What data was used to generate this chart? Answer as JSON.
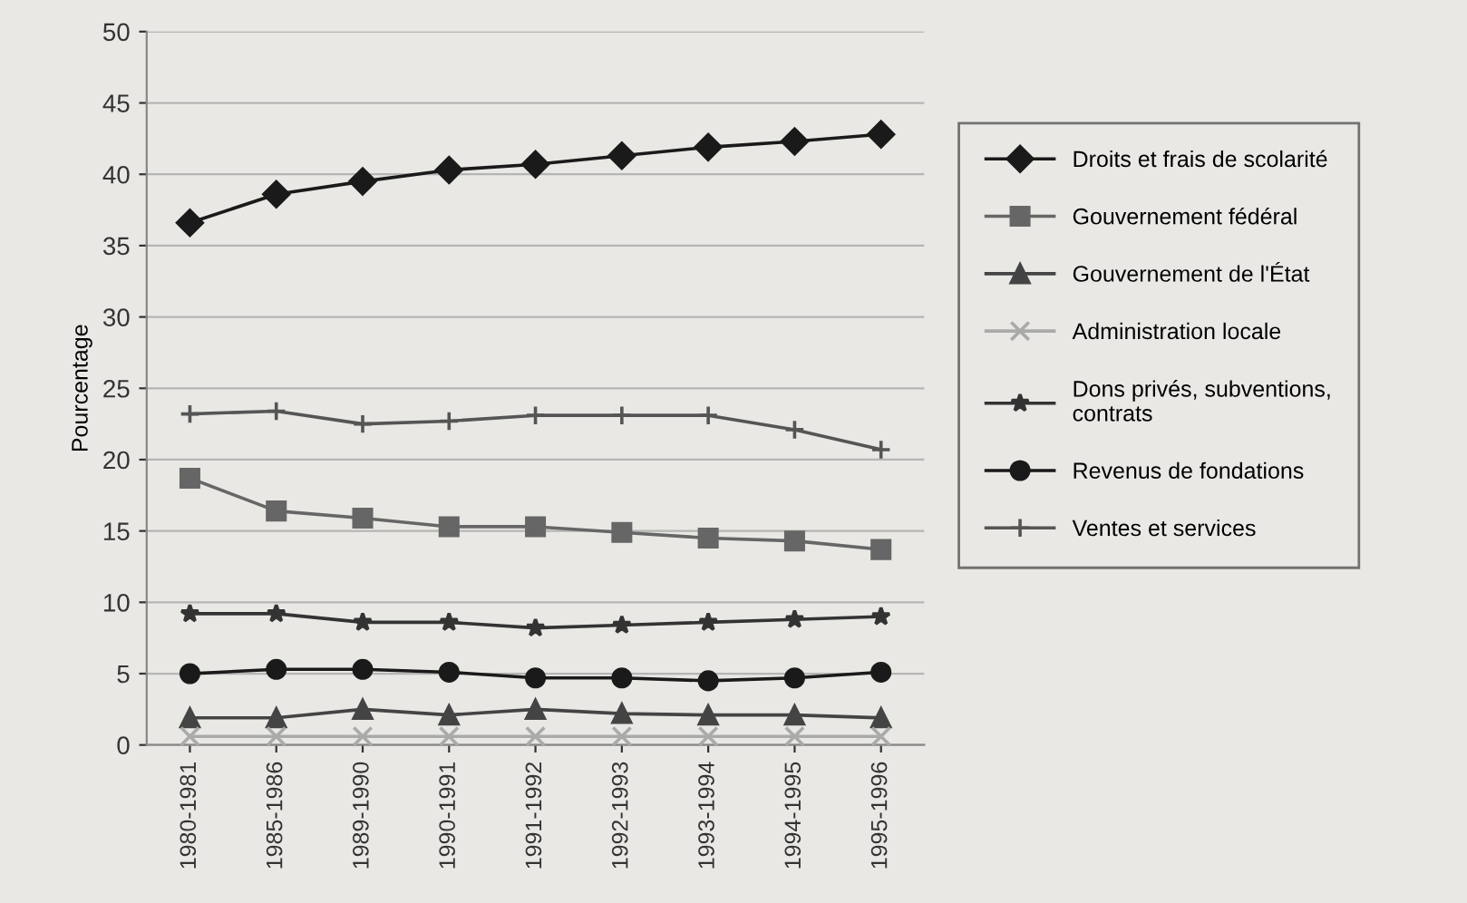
{
  "chart_data": {
    "type": "line",
    "ylabel": "Pourcentage",
    "categories": [
      "1980-1981",
      "1985-1986",
      "1989-1990",
      "1990-1991",
      "1991-1992",
      "1992-1993",
      "1993-1994",
      "1994-1995",
      "1995-1996"
    ],
    "series": [
      {
        "name": "Droits et frais de scolarité",
        "color": "#1a1a1a",
        "marker": "diamond",
        "values": [
          36.6,
          38.6,
          39.5,
          40.3,
          40.7,
          41.3,
          41.9,
          42.3,
          42.8
        ]
      },
      {
        "name": "Gouvernement fédéral",
        "color": "#666666",
        "marker": "square",
        "values": [
          18.7,
          16.4,
          15.9,
          15.3,
          15.3,
          14.9,
          14.5,
          14.3,
          13.7
        ]
      },
      {
        "name": "Gouvernement de l'État",
        "color": "#444444",
        "marker": "triangle",
        "values": [
          1.9,
          1.9,
          2.5,
          2.1,
          2.5,
          2.2,
          2.1,
          2.1,
          1.9
        ]
      },
      {
        "name": "Administration locale",
        "color": "#aaaaaa",
        "marker": "cross",
        "values": [
          0.6,
          0.6,
          0.6,
          0.6,
          0.6,
          0.6,
          0.6,
          0.6,
          0.6
        ]
      },
      {
        "name": "Dons privés, subventions, contrats",
        "color": "#333333",
        "marker": "star",
        "values": [
          9.2,
          9.2,
          8.6,
          8.6,
          8.2,
          8.4,
          8.6,
          8.8,
          9.0
        ]
      },
      {
        "name": "Revenus de fondations",
        "color": "#1a1a1a",
        "marker": "circle",
        "values": [
          5.0,
          5.3,
          5.3,
          5.1,
          4.7,
          4.7,
          4.5,
          4.7,
          5.1
        ]
      },
      {
        "name": "Ventes et services",
        "color": "#555555",
        "marker": "plus",
        "values": [
          23.2,
          23.4,
          22.5,
          22.7,
          23.1,
          23.1,
          23.1,
          22.1,
          20.7
        ]
      }
    ],
    "ylim": [
      0,
      50
    ],
    "yticks": [
      0,
      5,
      10,
      15,
      20,
      25,
      30,
      35,
      40,
      45,
      50
    ],
    "grid": "y",
    "legend": "right",
    "line_style": "solid"
  }
}
